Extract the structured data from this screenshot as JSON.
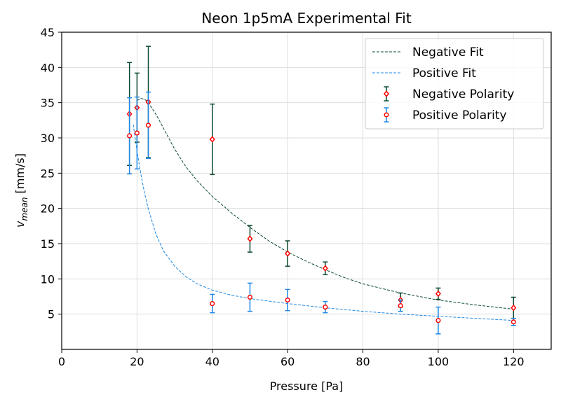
{
  "chart_data": {
    "type": "scatter",
    "title": "Neon 1p5mA Experimental Fit",
    "xlabel": "Pressure [Pa]",
    "ylabel_main": "v",
    "ylabel_sub": "mean",
    "ylabel_unit": " [mm/s]",
    "xlim": [
      0,
      130
    ],
    "ylim": [
      0,
      45
    ],
    "xticks": [
      0,
      20,
      40,
      60,
      80,
      100,
      120
    ],
    "yticks": [
      5,
      10,
      15,
      20,
      25,
      30,
      35,
      40,
      45
    ],
    "grid": true,
    "legend_position": "top-right",
    "series": [
      {
        "name": "Negative Fit",
        "kind": "fit-line",
        "color": "#0b4a2e",
        "x": [
          20,
          21,
          22,
          23,
          25,
          27,
          30,
          33,
          36,
          40,
          45,
          50,
          55,
          60,
          65,
          70,
          75,
          80,
          90,
          100,
          110,
          120
        ],
        "y": [
          35.3,
          35.6,
          35.5,
          35.0,
          33.4,
          31.4,
          28.4,
          25.9,
          23.9,
          21.7,
          19.4,
          17.3,
          15.4,
          13.8,
          12.5,
          11.3,
          10.2,
          9.3,
          8.0,
          7.0,
          6.3,
          5.7
        ]
      },
      {
        "name": "Positive Fit",
        "kind": "fit-line",
        "color": "#1e88e5",
        "x": [
          19,
          20,
          21,
          22,
          23,
          25,
          27,
          30,
          33,
          36,
          40,
          45,
          50,
          60,
          70,
          80,
          90,
          100,
          110,
          120
        ],
        "y": [
          31.9,
          28.1,
          24.9,
          22.2,
          19.9,
          16.4,
          14.0,
          11.8,
          10.3,
          9.3,
          8.4,
          7.7,
          7.2,
          6.5,
          5.9,
          5.4,
          5.0,
          4.7,
          4.4,
          4.1
        ]
      },
      {
        "name": "Negative Polarity",
        "kind": "errorbar",
        "color": "#0b4a2e",
        "marker": "diamond",
        "x": [
          18,
          20,
          23,
          40,
          50,
          60,
          70,
          90,
          100,
          120
        ],
        "y": [
          33.4,
          34.3,
          35.1,
          29.8,
          15.7,
          13.6,
          11.5,
          7.0,
          7.9,
          5.9
        ],
        "err": [
          7.3,
          4.9,
          7.9,
          5.0,
          1.9,
          1.8,
          0.9,
          1.0,
          0.8,
          1.5
        ]
      },
      {
        "name": "Positive Polarity",
        "kind": "errorbar",
        "color": "#1e88e5",
        "marker": "circle",
        "x": [
          18,
          20,
          23,
          40,
          50,
          60,
          70,
          90,
          100,
          120
        ],
        "y": [
          30.3,
          30.7,
          31.8,
          6.5,
          7.4,
          7.0,
          6.0,
          6.2,
          4.1,
          3.9
        ],
        "err": [
          5.4,
          5.1,
          4.7,
          1.3,
          2.0,
          1.5,
          0.8,
          0.8,
          1.9,
          0.5
        ]
      }
    ]
  }
}
